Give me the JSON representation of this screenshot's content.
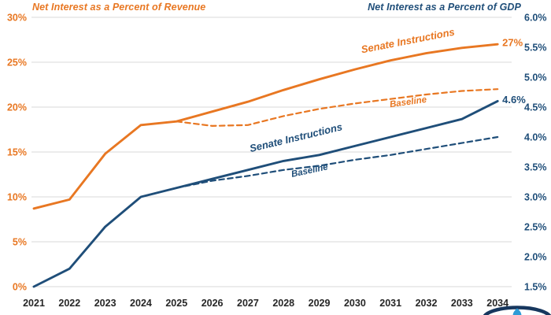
{
  "titles": {
    "left": "Net Interest as a Percent of Revenue",
    "right": "Net Interest as a Percent of GDP"
  },
  "colors": {
    "orange": "#E87722",
    "navy": "#1F4E79",
    "grid": "#DADADA",
    "year_label": "#262626",
    "logo_navy": "#17375E",
    "logo_blue": "#2E9BD6",
    "background": "#FFFFFF"
  },
  "series_labels": {
    "senate_revenue": "Senate Instructions",
    "baseline_revenue": "Baseline",
    "senate_gdp": "Senate Instructions",
    "baseline_gdp": "Baseline"
  },
  "end_labels": {
    "senate_revenue": "27%",
    "senate_gdp": "4.6%"
  },
  "chart_data": {
    "type": "line",
    "x": [
      2021,
      2022,
      2023,
      2024,
      2025,
      2026,
      2027,
      2028,
      2029,
      2030,
      2031,
      2032,
      2033,
      2034
    ],
    "left_axis": {
      "title": "Net Interest as a Percent of Revenue",
      "range": [
        0,
        30
      ],
      "tick_values": [
        30,
        25,
        20,
        15,
        10,
        5,
        0
      ],
      "tick_labels": [
        "30%",
        "25%",
        "20%",
        "15%",
        "10%",
        "5%",
        "0%"
      ]
    },
    "right_axis": {
      "title": "Net Interest as a Percent of GDP",
      "range": [
        1.5,
        6.0
      ],
      "tick_values": [
        6.0,
        5.5,
        5.0,
        4.5,
        4.0,
        3.5,
        3.0,
        2.5,
        2.0,
        1.5
      ],
      "tick_labels": [
        "6.0%",
        "5.5%",
        "5.0%",
        "4.5%",
        "4.0%",
        "3.5%",
        "3.0%",
        "2.5%",
        "2.0%",
        "1.5%"
      ]
    },
    "grid": "horizontal-only",
    "series": [
      {
        "name": "Senate Instructions (percent of revenue)",
        "label_key": "senate_revenue",
        "axis": "left",
        "style": "solid",
        "color": "#E87722",
        "values": [
          8.7,
          9.7,
          14.8,
          18.0,
          18.4,
          19.5,
          20.6,
          21.9,
          23.1,
          24.2,
          25.2,
          26.0,
          26.6,
          27.0
        ],
        "end_label": "27%"
      },
      {
        "name": "Baseline (percent of revenue)",
        "label_key": "baseline_revenue",
        "axis": "left",
        "style": "dashed",
        "color": "#E87722",
        "values": [
          null,
          null,
          null,
          null,
          18.4,
          17.9,
          18.0,
          19.0,
          19.8,
          20.4,
          20.9,
          21.4,
          21.8,
          22.0
        ],
        "end_label": ""
      },
      {
        "name": "Senate Instructions (percent of GDP)",
        "label_key": "senate_gdp",
        "axis": "right",
        "style": "solid",
        "color": "#1F4E79",
        "values": [
          1.5,
          1.8,
          2.5,
          3.0,
          3.15,
          3.3,
          3.45,
          3.6,
          3.7,
          3.85,
          4.0,
          4.15,
          4.3,
          4.6
        ],
        "end_label": "4.6%"
      },
      {
        "name": "Baseline (percent of GDP)",
        "label_key": "baseline_gdp",
        "axis": "right",
        "style": "dashed",
        "color": "#1F4E79",
        "values": [
          null,
          null,
          null,
          null,
          3.15,
          3.27,
          3.35,
          3.45,
          3.52,
          3.62,
          3.7,
          3.8,
          3.9,
          4.0
        ],
        "end_label": ""
      }
    ]
  }
}
